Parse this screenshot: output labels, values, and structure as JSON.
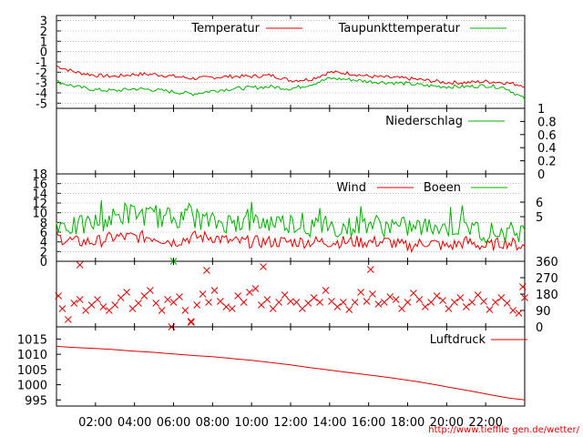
{
  "credit": "http://www.tiefflie gen.de/wetter/",
  "colors": {
    "red": "#e00000",
    "green": "#00b000",
    "grid": "#999999"
  },
  "chart_data": [
    {
      "type": "line",
      "ylim": [
        -5.5,
        3.5
      ],
      "yticks": [
        3,
        2,
        1,
        0,
        -1,
        -2,
        -3,
        -4,
        -5
      ],
      "grid": true,
      "legend_placement": "top",
      "series": [
        {
          "name": "Temperatur",
          "color": "#e00000",
          "x": [
            0,
            1,
            2,
            3,
            4,
            5,
            6,
            7,
            8,
            9,
            10,
            11,
            12,
            13,
            14,
            15,
            16,
            17,
            18,
            19,
            20,
            21,
            22,
            23,
            24
          ],
          "values": [
            -1.4,
            -2.0,
            -2.3,
            -2.4,
            -2.2,
            -2.2,
            -2.4,
            -2.6,
            -2.5,
            -2.4,
            -2.4,
            -2.3,
            -2.8,
            -2.7,
            -2.0,
            -2.1,
            -2.4,
            -2.5,
            -2.6,
            -2.8,
            -3.0,
            -3.0,
            -2.9,
            -3.0,
            -3.3
          ]
        },
        {
          "name": "Taupunkttemperatur",
          "color": "#00b000",
          "x": [
            0,
            1,
            2,
            3,
            4,
            5,
            6,
            7,
            8,
            9,
            10,
            11,
            12,
            13,
            14,
            15,
            16,
            17,
            18,
            19,
            20,
            21,
            22,
            23,
            24
          ],
          "values": [
            -2.9,
            -3.4,
            -3.7,
            -3.8,
            -3.6,
            -3.7,
            -3.9,
            -4.1,
            -3.8,
            -3.6,
            -3.5,
            -3.4,
            -3.6,
            -3.2,
            -2.6,
            -2.7,
            -2.9,
            -3.0,
            -3.1,
            -3.3,
            -3.4,
            -3.4,
            -3.3,
            -3.5,
            -4.6
          ]
        }
      ]
    },
    {
      "type": "line",
      "ylim": [
        0,
        1
      ],
      "yticks": [
        "1",
        "0.8",
        "0.6",
        "0.4",
        "0.2",
        "0"
      ],
      "grid": false,
      "legend_placement": "top-right",
      "series": [
        {
          "name": "Niederschlag",
          "color": "#00b000",
          "x": [
            0,
            24
          ],
          "values": [
            0,
            0
          ]
        }
      ]
    },
    {
      "type": "line",
      "ylim": [
        0,
        18
      ],
      "yticks": [
        18,
        16,
        14,
        12,
        10,
        8,
        6,
        4,
        2,
        0
      ],
      "y2ticks": [
        "6",
        "5"
      ],
      "grid": true,
      "legend_placement": "top-right",
      "series": [
        {
          "name": "Wind",
          "color": "#e00000",
          "x": [
            0,
            1,
            2,
            3,
            4,
            5,
            6,
            7,
            8,
            9,
            10,
            11,
            12,
            13,
            14,
            15,
            16,
            17,
            18,
            19,
            20,
            21,
            22,
            23,
            24
          ],
          "values": [
            5,
            4,
            4,
            5,
            5,
            5,
            4,
            5,
            5,
            4,
            4,
            4,
            4,
            4,
            4,
            4,
            4,
            4,
            3,
            4,
            3,
            4,
            3,
            4,
            3
          ]
        },
        {
          "name": "Boeen",
          "color": "#00b000",
          "x": [
            0,
            1,
            2,
            3,
            4,
            5,
            6,
            7,
            8,
            9,
            10,
            11,
            12,
            13,
            14,
            15,
            16,
            17,
            18,
            19,
            20,
            21,
            22,
            23,
            24
          ],
          "values": [
            8,
            7,
            8,
            9,
            10,
            9,
            9,
            9,
            8,
            8,
            8,
            8,
            8,
            7,
            7,
            7,
            8,
            7,
            7,
            7,
            7,
            7,
            6,
            6,
            6
          ]
        }
      ]
    },
    {
      "type": "scatter",
      "ylim": [
        0,
        360
      ],
      "y2ticks": [
        "360",
        "270",
        "180",
        "90",
        "0"
      ],
      "grid": false,
      "series": [
        {
          "name": "",
          "color": "#e00000",
          "x": [
            0.1,
            0.3,
            0.6,
            0.9,
            1.2,
            1.5,
            1.8,
            2.1,
            2.4,
            2.7,
            3.0,
            3.3,
            3.6,
            3.9,
            4.2,
            4.5,
            4.8,
            5.1,
            5.4,
            5.7,
            6.0,
            6.3,
            6.6,
            6.9,
            7.2,
            7.5,
            7.8,
            8.1,
            8.4,
            8.7,
            9.0,
            9.3,
            9.6,
            9.9,
            10.2,
            10.5,
            10.8,
            11.1,
            11.4,
            11.7,
            12.0,
            12.3,
            12.6,
            12.9,
            13.2,
            13.5,
            13.8,
            14.1,
            14.4,
            14.7,
            15.0,
            15.3,
            15.6,
            15.9,
            16.2,
            16.5,
            16.8,
            17.1,
            17.4,
            17.7,
            18.0,
            18.3,
            18.6,
            18.9,
            19.2,
            19.5,
            19.8,
            20.1,
            20.4,
            20.7,
            21.0,
            21.3,
            21.6,
            21.9,
            22.2,
            22.5,
            22.8,
            23.1,
            23.4,
            23.7,
            23.9,
            1.2,
            5.9,
            6.9,
            7.7,
            10.6,
            16.1,
            24.0
          ],
          "values": [
            170,
            100,
            40,
            130,
            150,
            90,
            120,
            150,
            110,
            90,
            120,
            160,
            190,
            100,
            130,
            170,
            200,
            130,
            90,
            150,
            135,
            165,
            90,
            30,
            120,
            180,
            135,
            200,
            140,
            110,
            100,
            170,
            135,
            190,
            210,
            120,
            150,
            100,
            135,
            175,
            140,
            135,
            100,
            130,
            160,
            135,
            200,
            140,
            110,
            135,
            95,
            135,
            190,
            140,
            180,
            125,
            135,
            165,
            150,
            100,
            135,
            185,
            150,
            110,
            135,
            170,
            145,
            100,
            135,
            160,
            110,
            135,
            175,
            140,
            95,
            135,
            160,
            130,
            90,
            75,
            220,
            340,
            0,
            25,
            310,
            330,
            315,
            160
          ]
        },
        {
          "name": "",
          "color": "#00b000",
          "x": [
            6.0
          ],
          "values": [
            360
          ]
        }
      ]
    },
    {
      "type": "line",
      "ylim": [
        993,
        1019
      ],
      "yticks": [
        1015,
        1010,
        1005,
        1000,
        995
      ],
      "grid": false,
      "legend_placement": "top-right",
      "series": [
        {
          "name": "Luftdruck",
          "color": "#e00000",
          "x": [
            0,
            1,
            2,
            3,
            4,
            5,
            6,
            7,
            8,
            9,
            10,
            11,
            12,
            13,
            14,
            15,
            16,
            17,
            18,
            19,
            20,
            21,
            22,
            23,
            24
          ],
          "values": [
            1012.6,
            1012.2,
            1011.9,
            1011.5,
            1011.0,
            1010.6,
            1010.1,
            1009.6,
            1009.2,
            1008.6,
            1008.0,
            1007.3,
            1006.5,
            1005.6,
            1004.8,
            1004.0,
            1003.2,
            1002.4,
            1001.5,
            1000.5,
            999.3,
            998.2,
            997.0,
            995.8,
            995.0
          ]
        }
      ]
    }
  ],
  "xaxis": {
    "xlim": [
      0,
      24
    ],
    "ticks": [
      {
        "x": 2,
        "label": "02:00"
      },
      {
        "x": 4,
        "label": "04:00"
      },
      {
        "x": 6,
        "label": "06:00"
      },
      {
        "x": 8,
        "label": "08:00"
      },
      {
        "x": 10,
        "label": "10:00"
      },
      {
        "x": 12,
        "label": "12:00"
      },
      {
        "x": 14,
        "label": "14:00"
      },
      {
        "x": 16,
        "label": "16:00"
      },
      {
        "x": 18,
        "label": "18:00"
      },
      {
        "x": 20,
        "label": "20:00"
      },
      {
        "x": 22,
        "label": "22:00"
      }
    ]
  }
}
